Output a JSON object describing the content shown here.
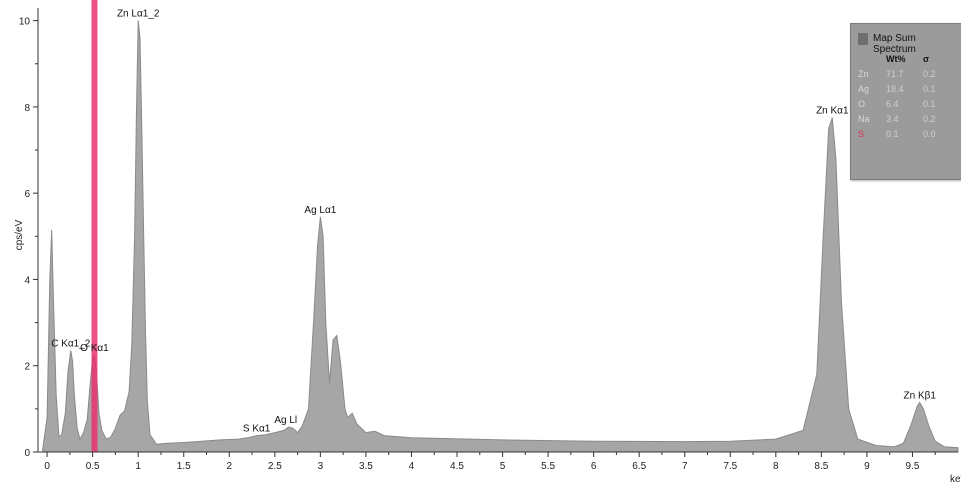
{
  "chart_data": {
    "type": "area",
    "xlabel": "keV",
    "ylabel": "cps/eV",
    "xlim": [
      -0.1,
      10.0
    ],
    "ylim": [
      0,
      10.2
    ],
    "x_ticks": [
      "0",
      "0.5",
      "1",
      "1.5",
      "2",
      "2.5",
      "3",
      "3.5",
      "4",
      "4.5",
      "5",
      "5.5",
      "6",
      "6.5",
      "7",
      "7.5",
      "8",
      "8.5",
      "9",
      "9.5"
    ],
    "y_ticks": [
      "0",
      "2",
      "4",
      "6",
      "8",
      "10"
    ],
    "fill_color": "#a6a6a6",
    "stroke_color": "#8a8a8a",
    "marker": {
      "x": 0.52,
      "color": "#e8336d"
    },
    "series": [
      {
        "x": [
          -0.05,
          0.0,
          0.03,
          0.05,
          0.07,
          0.1,
          0.13,
          0.16,
          0.2,
          0.23,
          0.26,
          0.28,
          0.3,
          0.33,
          0.36,
          0.4,
          0.44,
          0.47,
          0.5,
          0.52,
          0.54,
          0.57,
          0.6,
          0.65,
          0.7,
          0.75,
          0.8,
          0.85,
          0.9,
          0.93,
          0.96,
          0.98,
          1.0,
          1.02,
          1.04,
          1.06,
          1.08,
          1.1,
          1.13,
          1.2,
          1.3,
          1.5,
          1.7,
          1.9,
          2.1,
          2.2,
          2.3,
          2.4,
          2.5,
          2.6,
          2.65,
          2.7,
          2.75,
          2.8,
          2.87,
          2.93,
          2.97,
          3.0,
          3.03,
          3.06,
          3.1,
          3.14,
          3.18,
          3.22,
          3.27,
          3.3,
          3.35,
          3.4,
          3.5,
          3.6,
          3.7,
          4.0,
          5.0,
          6.0,
          7.0,
          7.5,
          8.0,
          8.3,
          8.45,
          8.52,
          8.58,
          8.62,
          8.66,
          8.72,
          8.8,
          8.9,
          9.1,
          9.3,
          9.4,
          9.48,
          9.55,
          9.58,
          9.62,
          9.68,
          9.75,
          9.85,
          10.0
        ],
        "y": [
          0.05,
          0.8,
          4.0,
          5.15,
          3.5,
          1.3,
          0.35,
          0.4,
          0.9,
          1.9,
          2.35,
          2.1,
          1.3,
          0.55,
          0.3,
          0.45,
          0.75,
          1.5,
          2.2,
          2.25,
          1.9,
          0.9,
          0.5,
          0.3,
          0.35,
          0.55,
          0.85,
          0.95,
          1.4,
          2.5,
          5.0,
          7.8,
          10.0,
          9.6,
          7.5,
          5.0,
          2.8,
          1.2,
          0.4,
          0.18,
          0.2,
          0.22,
          0.25,
          0.28,
          0.3,
          0.33,
          0.38,
          0.4,
          0.45,
          0.5,
          0.58,
          0.55,
          0.45,
          0.6,
          1.0,
          3.2,
          4.8,
          5.45,
          5.0,
          3.0,
          1.6,
          2.6,
          2.7,
          2.1,
          1.0,
          0.8,
          0.9,
          0.65,
          0.45,
          0.48,
          0.38,
          0.33,
          0.28,
          0.25,
          0.24,
          0.25,
          0.3,
          0.5,
          1.8,
          5.0,
          7.5,
          7.75,
          6.8,
          3.5,
          1.0,
          0.3,
          0.15,
          0.12,
          0.2,
          0.6,
          1.05,
          1.15,
          1.0,
          0.6,
          0.25,
          0.12,
          0.1
        ]
      }
    ],
    "annotations": [
      {
        "text": "Zn Lα1_2",
        "x": 1.0,
        "y": 10.0
      },
      {
        "text": "C Kα1_2",
        "x": 0.26,
        "y": 2.35
      },
      {
        "text": "O Kα1",
        "x": 0.52,
        "y": 2.25
      },
      {
        "text": "S Kα1",
        "x": 2.3,
        "y": 0.38
      },
      {
        "text": "Ag Ll",
        "x": 2.62,
        "y": 0.58
      },
      {
        "text": "Ag Lα1",
        "x": 3.0,
        "y": 5.45
      },
      {
        "text": "Zn Kα1",
        "x": 8.62,
        "y": 7.75
      },
      {
        "text": "Zn Kβ1",
        "x": 9.58,
        "y": 1.15
      }
    ]
  },
  "legend": {
    "title": "Map Sum Spectrum",
    "col_wt": "Wt%",
    "col_sigma": "σ",
    "rows": [
      {
        "element": "Zn",
        "wt": "71.7",
        "sigma": "0.2",
        "color": "#d9d9d9"
      },
      {
        "element": "Ag",
        "wt": "18.4",
        "sigma": "0.1",
        "color": "#d9d9d9"
      },
      {
        "element": "O",
        "wt": "6.4",
        "sigma": "0.1",
        "color": "#d9d9d9"
      },
      {
        "element": "Na",
        "wt": "3.4",
        "sigma": "0.2",
        "color": "#d9d9d9"
      },
      {
        "element": "S",
        "wt": "0.1",
        "sigma": "0.0",
        "color": "#e0334f"
      }
    ]
  }
}
